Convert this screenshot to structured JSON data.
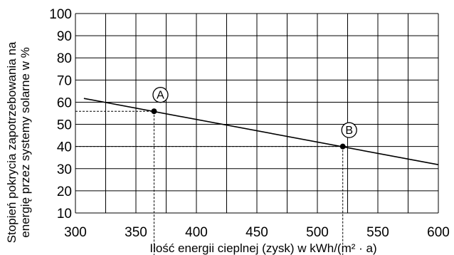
{
  "chart_data": {
    "type": "line",
    "xlabel": "Ilość energii cieplnej (zysk) w kWh/(m² · a)",
    "ylabel": [
      "Stopień pokrycia zapotrzebowania na",
      "energię przez systemy solarne w %"
    ],
    "xlim": [
      300,
      600
    ],
    "ylim": [
      10,
      100
    ],
    "x_ticks": [
      300,
      350,
      400,
      450,
      500,
      550,
      600
    ],
    "y_ticks": [
      10,
      20,
      30,
      40,
      50,
      60,
      70,
      80,
      90,
      100
    ],
    "grid": true,
    "series": [
      {
        "x": [
          307,
          600
        ],
        "y": [
          61.7,
          31.8
        ]
      }
    ],
    "points": [
      {
        "label": "A",
        "x": 365,
        "y": 55.9
      },
      {
        "label": "B",
        "x": 521,
        "y": 40
      }
    ],
    "colors": {
      "line": "#000000",
      "grid": "#000000",
      "guide": "#000000"
    }
  }
}
